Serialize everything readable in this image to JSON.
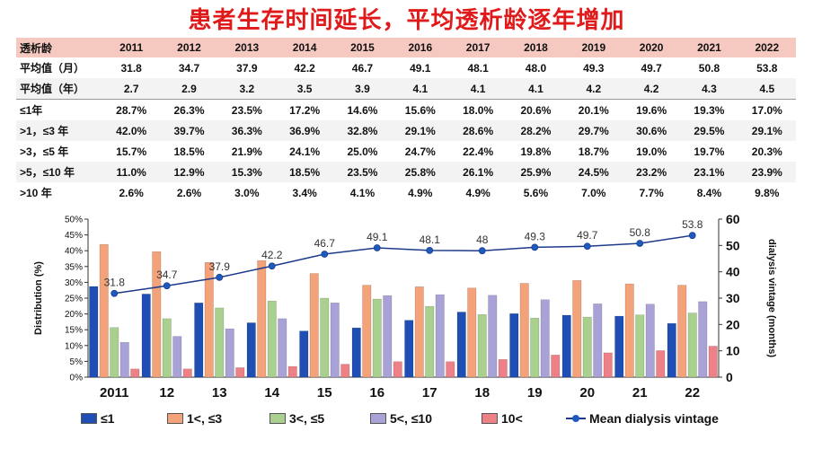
{
  "title": "患者生存时间延长，平均透析龄逐年增加",
  "table": {
    "header_label": "透析龄",
    "years": [
      "2011",
      "2012",
      "2013",
      "2014",
      "2015",
      "2016",
      "2017",
      "2018",
      "2019",
      "2020",
      "2021",
      "2022"
    ],
    "rows": [
      {
        "label": "平均值（月）",
        "values": [
          "31.8",
          "34.7",
          "37.9",
          "42.2",
          "46.7",
          "49.1",
          "48.1",
          "48.0",
          "49.3",
          "49.7",
          "50.8",
          "53.8"
        ]
      },
      {
        "label": "平均值（年）",
        "values": [
          "2.7",
          "2.9",
          "3.2",
          "3.5",
          "3.9",
          "4.1",
          "4.1",
          "4.1",
          "4.2",
          "4.2",
          "4.3",
          "4.5"
        ]
      },
      {
        "label": "≤1年",
        "values": [
          "28.7%",
          "26.3%",
          "23.5%",
          "17.2%",
          "14.6%",
          "15.6%",
          "18.0%",
          "20.6%",
          "20.1%",
          "19.6%",
          "19.3%",
          "17.0%"
        ]
      },
      {
        "label": ">1，≤3 年",
        "values": [
          "42.0%",
          "39.7%",
          "36.3%",
          "36.9%",
          "32.8%",
          "29.1%",
          "28.6%",
          "28.2%",
          "29.7%",
          "30.6%",
          "29.5%",
          "29.1%"
        ]
      },
      {
        "label": ">3，≤5 年",
        "values": [
          "15.7%",
          "18.5%",
          "21.9%",
          "24.1%",
          "25.0%",
          "24.7%",
          "22.4%",
          "19.8%",
          "18.7%",
          "19.0%",
          "19.7%",
          "20.3%"
        ]
      },
      {
        "label": ">5，≤10 年",
        "values": [
          "11.0%",
          "12.9%",
          "15.3%",
          "18.5%",
          "23.5%",
          "25.8%",
          "26.1%",
          "25.9%",
          "24.5%",
          "23.2%",
          "23.1%",
          "23.9%"
        ]
      },
      {
        "label": ">10 年",
        "values": [
          "2.6%",
          "2.6%",
          "3.0%",
          "3.4%",
          "4.1%",
          "4.9%",
          "4.9%",
          "5.6%",
          "7.0%",
          "7.7%",
          "8.4%",
          "9.8%"
        ]
      }
    ]
  },
  "chart_data": {
    "type": "bar",
    "categories": [
      "2011",
      "12",
      "13",
      "14",
      "15",
      "16",
      "17",
      "18",
      "19",
      "20",
      "21",
      "22"
    ],
    "ylabel": "Distribution (%)",
    "y2label": "dialysis vintage (months)",
    "ylim": [
      0,
      50
    ],
    "y2lim": [
      0,
      60
    ],
    "yticks": [
      "0%",
      "5%",
      "10%",
      "15%",
      "20%",
      "25%",
      "30%",
      "35%",
      "40%",
      "45%",
      "50%"
    ],
    "y2ticks": [
      "0",
      "10",
      "20",
      "30",
      "40",
      "50",
      "60"
    ],
    "series": [
      {
        "name": "≤1",
        "color": "#1f4fb5",
        "values": [
          28.7,
          26.3,
          23.5,
          17.2,
          14.6,
          15.6,
          18.0,
          20.6,
          20.1,
          19.6,
          19.3,
          17.0
        ]
      },
      {
        "name": "1<, ≤3",
        "color": "#f4a27a",
        "values": [
          42.0,
          39.7,
          36.3,
          36.9,
          32.8,
          29.1,
          28.6,
          28.2,
          29.7,
          30.6,
          29.5,
          29.1
        ]
      },
      {
        "name": "3<, ≤5",
        "color": "#a9d08e",
        "values": [
          15.7,
          18.5,
          21.9,
          24.1,
          25.0,
          24.7,
          22.4,
          19.8,
          18.7,
          19.0,
          19.7,
          20.3
        ]
      },
      {
        "name": "5<, ≤10",
        "color": "#a9a2d6",
        "values": [
          11.0,
          12.9,
          15.3,
          18.5,
          23.5,
          25.8,
          26.1,
          25.9,
          24.5,
          23.2,
          23.1,
          23.9
        ]
      },
      {
        "name": "10<",
        "color": "#ee8088",
        "values": [
          2.6,
          2.6,
          3.0,
          3.4,
          4.1,
          4.9,
          4.9,
          5.6,
          7.0,
          7.7,
          8.4,
          9.8
        ]
      }
    ],
    "line": {
      "name": "Mean dialysis vintage",
      "color": "#1d3a8a",
      "values": [
        31.8,
        34.7,
        37.9,
        42.2,
        46.7,
        49.1,
        48.1,
        48.0,
        49.3,
        49.7,
        50.8,
        53.8
      ],
      "labels": [
        "31.8",
        "34.7",
        "37.9",
        "42.2",
        "46.7",
        "49.1",
        "48.1",
        "48",
        "49.3",
        "49.7",
        "50.8",
        "53.8"
      ]
    },
    "grid": false,
    "legend_position": "bottom"
  }
}
